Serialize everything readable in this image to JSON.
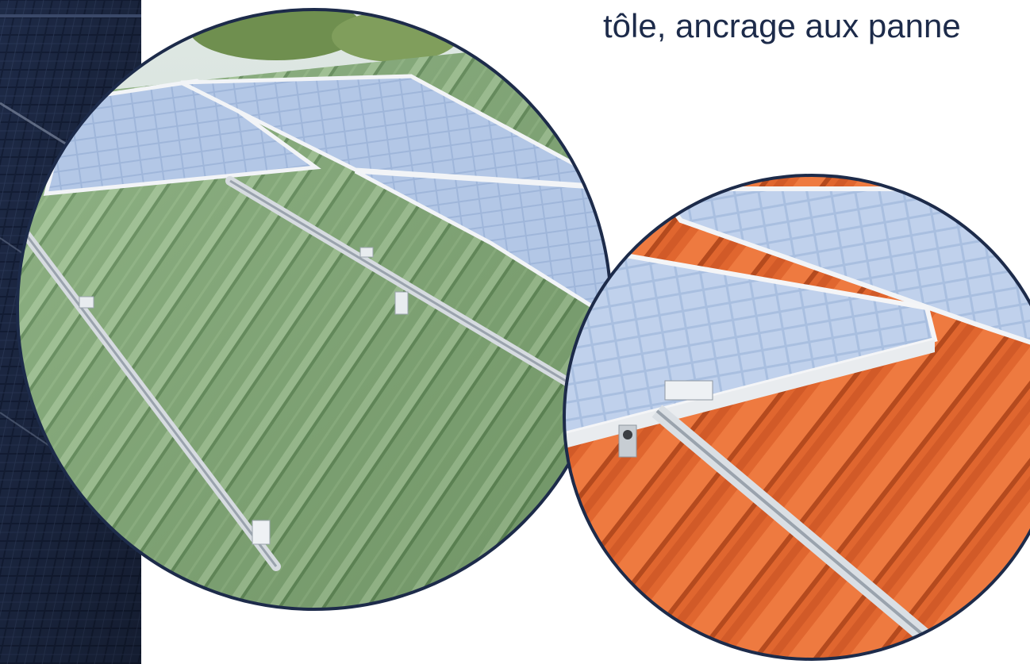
{
  "heading": {
    "text": "tôle, ancrage aux panne"
  },
  "colors": {
    "navy": "#1d2b4a",
    "roof_green": "#7fa873",
    "tile_orange": "#e0662f",
    "panel_blue": "#a9bfe0",
    "rail_silver": "#d6dbe0"
  },
  "images": {
    "background": {
      "icon": "dark-solar-panel-photo"
    },
    "steel_roof": {
      "icon": "green-steel-roof-solar-mounting-photo"
    },
    "tile_roof": {
      "icon": "orange-tile-roof-solar-mounting-photo"
    }
  }
}
